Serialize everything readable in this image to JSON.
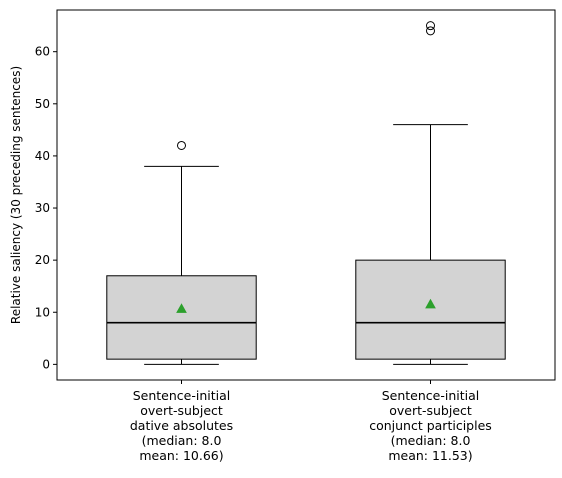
{
  "chart_data": {
    "type": "box",
    "ylabel": "Relative saliency (30 preceding sentences)",
    "ylim": [
      -3,
      68
    ],
    "yticks": [
      0,
      10,
      20,
      30,
      40,
      50,
      60
    ],
    "grid": false,
    "colors": {
      "box_fill": "#d3d3d3",
      "median_line": "#000000",
      "mean_marker": "#2ca02c"
    },
    "groups": [
      {
        "label_lines": [
          "Sentence-initial",
          "overt-subject",
          "dative absolutes",
          "(median: 8.0",
          "mean: 10.66)"
        ],
        "whisker_low": 0,
        "q1": 1,
        "median": 8,
        "q3": 17,
        "whisker_high": 38,
        "mean": 10.66,
        "outliers": [
          42
        ]
      },
      {
        "label_lines": [
          "Sentence-initial",
          "overt-subject",
          "conjunct participles",
          "(median: 8.0",
          "mean: 11.53)"
        ],
        "whisker_low": 0,
        "q1": 1,
        "median": 8,
        "q3": 20,
        "whisker_high": 46,
        "mean": 11.53,
        "outliers": [
          64,
          65
        ]
      }
    ]
  }
}
